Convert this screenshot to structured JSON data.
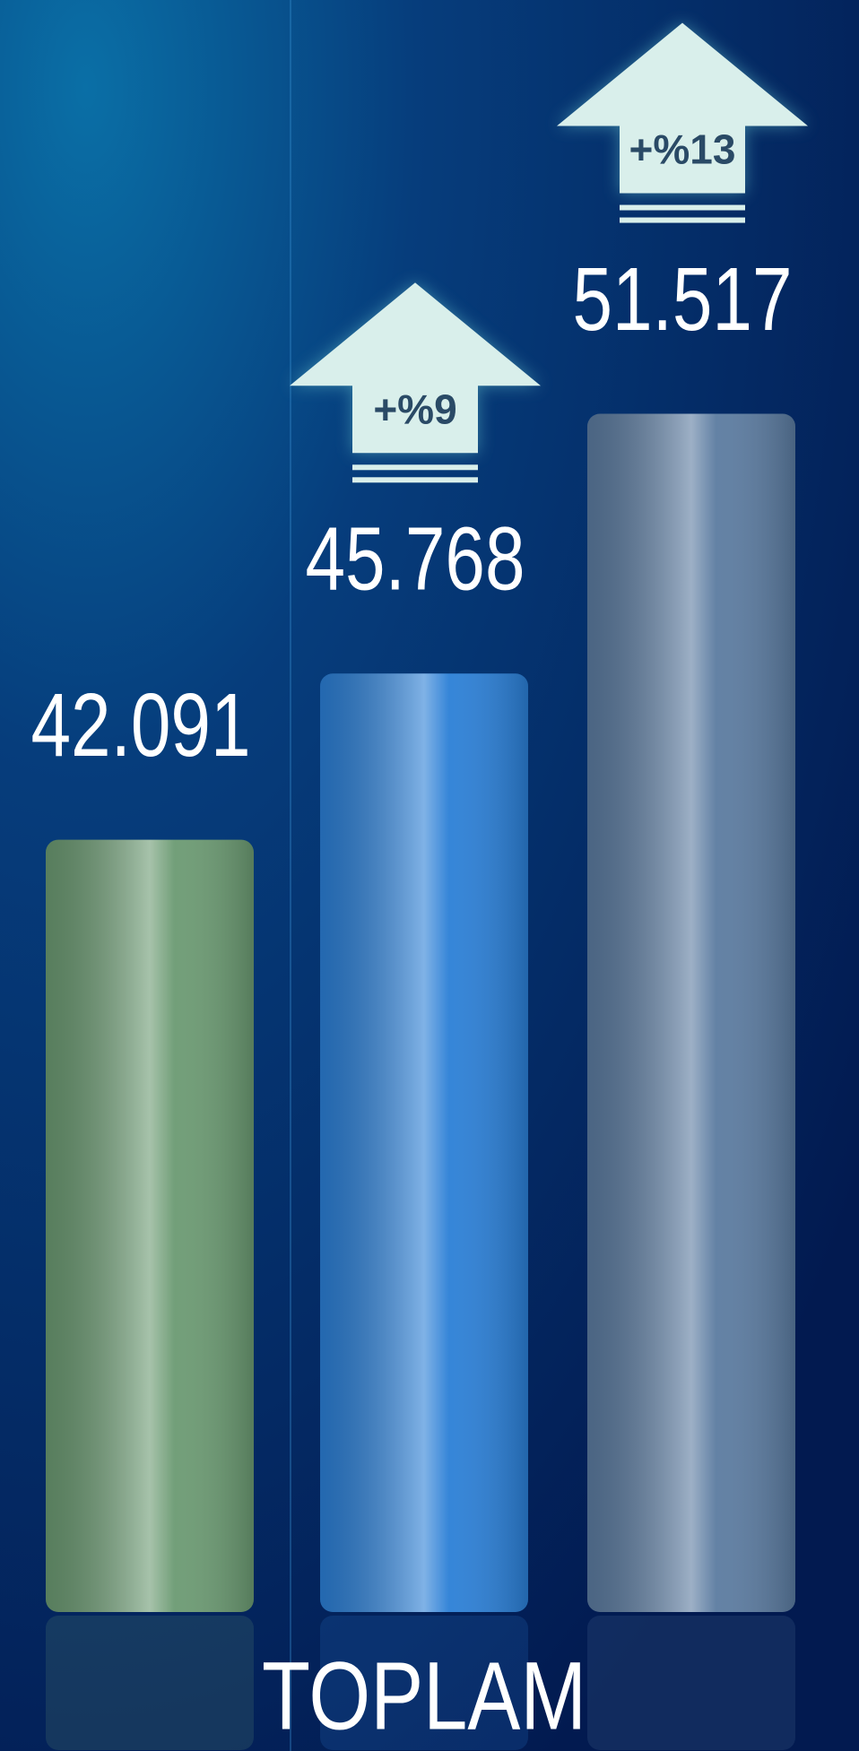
{
  "chart_data": {
    "type": "bar",
    "title": "TOPLAM",
    "categories": [
      null,
      null,
      null
    ],
    "values": [
      42091,
      45768,
      51517
    ],
    "value_labels": [
      "42.091",
      "45.768",
      "51.517"
    ],
    "colors": [
      "#6b9a72",
      "#2b7fd6",
      "#5b7ba0"
    ],
    "annotations": [
      "+%9",
      "+%13"
    ],
    "ylim": [
      25000,
      55000
    ]
  }
}
